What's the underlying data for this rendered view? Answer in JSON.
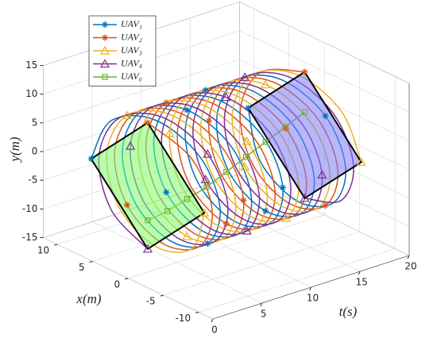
{
  "chart_data": {
    "type": "line3d",
    "tlabel": "t(s)",
    "xlabel": "x(m)",
    "ylabel": "y(m)",
    "tlim": [
      0,
      20
    ],
    "tticks": [
      0,
      5,
      10,
      15,
      20
    ],
    "xlim": [
      -12,
      12
    ],
    "xticks": [
      -10,
      -5,
      0,
      5,
      10
    ],
    "ylim": [
      -15,
      15
    ],
    "yticks": [
      -15,
      -10,
      -5,
      0,
      5,
      10,
      15
    ],
    "grid": true,
    "legend": "upper left",
    "t": [
      2,
      2.4,
      2.8,
      3.2,
      3.6,
      4,
      4.4,
      4.8,
      5.2,
      5.6,
      6,
      6.4,
      6.8,
      7.2,
      7.6,
      8,
      8.4,
      8.8,
      9.2,
      9.6,
      10,
      10.4,
      10.8,
      11.2,
      11.6,
      12,
      12.4,
      12.8,
      13.2,
      13.6,
      14,
      14.4,
      14.8,
      15.2,
      15.6,
      16,
      16.4,
      16.8,
      17.2,
      17.6,
      18
    ],
    "series": [
      {
        "name": "UAV₁",
        "color": "#0072BD",
        "marker": "star",
        "x": [
          8,
          5.7,
          0,
          -5.7,
          -8,
          -5.7,
          0,
          5.7,
          8,
          5.7,
          0,
          -5.7,
          -8,
          -5.7,
          0,
          5.7,
          8,
          5.7,
          0,
          -5.7,
          -8,
          -5.7,
          0,
          5.7,
          8,
          5.7,
          0,
          -5.7,
          -8,
          -5.7,
          0,
          5.7,
          8,
          5.7,
          0,
          -5.7,
          -8,
          -5.7,
          0,
          5.7,
          8
        ],
        "y": [
          0,
          7.8,
          11,
          7.8,
          0,
          -7.8,
          -11,
          -7.8,
          0,
          7.8,
          11,
          7.8,
          0,
          -7.8,
          -11,
          -7.8,
          0,
          7.8,
          11,
          7.8,
          0,
          -7.8,
          -11,
          -7.8,
          0,
          7.8,
          11,
          7.8,
          0,
          -7.8,
          -11,
          -7.8,
          0,
          7.8,
          11,
          7.8,
          0,
          -7.8,
          -11,
          -7.8,
          0
        ]
      },
      {
        "name": "UAV₂",
        "color": "#D95319",
        "marker": "star",
        "x": [
          0,
          -5.7,
          -8,
          -5.7,
          0,
          5.7,
          8,
          5.7,
          0,
          -5.7,
          -8,
          -5.7,
          0,
          5.7,
          8,
          5.7,
          0,
          -5.7,
          -8,
          -5.7,
          0,
          5.7,
          8,
          5.7,
          0,
          -5.7,
          -8,
          -5.7,
          0,
          5.7,
          8,
          5.7,
          0,
          -5.7,
          -8,
          -5.7,
          0,
          5.7,
          8,
          5.7,
          0
        ],
        "y": [
          11,
          7.8,
          0,
          -7.8,
          -11,
          -7.8,
          0,
          7.8,
          11,
          7.8,
          0,
          -7.8,
          -11,
          -7.8,
          0,
          7.8,
          11,
          7.8,
          0,
          -7.8,
          -11,
          -7.8,
          0,
          7.8,
          11,
          7.8,
          0,
          -7.8,
          -11,
          -7.8,
          0,
          7.8,
          11,
          7.8,
          0,
          -7.8,
          -11,
          -7.8,
          0,
          7.8,
          11
        ]
      },
      {
        "name": "UAV₃",
        "color": "#EDB120",
        "marker": "triangle",
        "x": [
          -8,
          -5.7,
          0,
          5.7,
          8,
          5.7,
          0,
          -5.7,
          -8,
          -5.7,
          0,
          5.7,
          8,
          5.7,
          0,
          -5.7,
          -8,
          -5.7,
          0,
          5.7,
          8,
          5.7,
          0,
          -5.7,
          -8,
          -5.7,
          0,
          5.7,
          8,
          5.7,
          0,
          -5.7,
          -8,
          -5.7,
          0,
          5.7,
          8,
          5.7,
          0,
          -5.7,
          -8
        ],
        "y": [
          0,
          -7.8,
          -11,
          -7.8,
          0,
          7.8,
          11,
          7.8,
          0,
          -7.8,
          -11,
          -7.8,
          0,
          7.8,
          11,
          7.8,
          0,
          -7.8,
          -11,
          -7.8,
          0,
          7.8,
          11,
          7.8,
          0,
          -7.8,
          -11,
          -7.8,
          0,
          7.8,
          11,
          7.8,
          0,
          -7.8,
          -11,
          -7.8,
          0,
          7.8,
          11,
          7.8,
          0
        ]
      },
      {
        "name": "UAV₄",
        "color": "#7E2F8E",
        "marker": "triangle",
        "x": [
          0,
          5.7,
          8,
          5.7,
          0,
          -5.7,
          -8,
          -5.7,
          0,
          5.7,
          8,
          5.7,
          0,
          -5.7,
          -8,
          -5.7,
          0,
          5.7,
          8,
          5.7,
          0,
          -5.7,
          -8,
          -5.7,
          0,
          5.7,
          8,
          5.7,
          0,
          -5.7,
          -8,
          -5.7,
          0,
          5.7,
          8,
          5.7,
          0,
          -5.7,
          -8,
          -5.7,
          0
        ],
        "y": [
          -11,
          -7.8,
          0,
          7.8,
          11,
          7.8,
          0,
          -7.8,
          -11,
          -7.8,
          0,
          7.8,
          11,
          7.8,
          0,
          -7.8,
          -11,
          -7.8,
          0,
          7.8,
          11,
          7.8,
          0,
          -7.8,
          -11,
          -7.8,
          0,
          7.8,
          11,
          7.8,
          0,
          -7.8,
          -11,
          -7.8,
          0,
          7.8,
          11,
          7.8,
          0,
          -7.8,
          -11
        ]
      },
      {
        "name": "UAV₀",
        "color": "#77AC30",
        "marker": "square",
        "t": [
          2,
          4,
          6,
          8,
          10,
          12,
          14,
          16,
          18
        ],
        "x": [
          0,
          0,
          0,
          0,
          0,
          0,
          0,
          0,
          0
        ],
        "y": [
          -6,
          -5.5,
          -4.5,
          -3.5,
          -2,
          -0.5,
          1,
          2.5,
          4
        ]
      }
    ]
  }
}
